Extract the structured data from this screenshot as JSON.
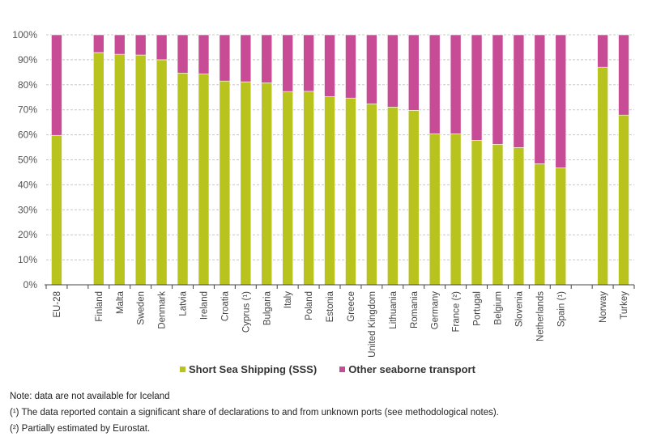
{
  "chart_data": {
    "type": "bar",
    "stacked": true,
    "percent": true,
    "title": "",
    "xlabel": "",
    "ylabel": "",
    "ylim": [
      0,
      100
    ],
    "yticks": [
      "0%",
      "10%",
      "20%",
      "30%",
      "40%",
      "50%",
      "60%",
      "70%",
      "80%",
      "90%",
      "100%"
    ],
    "grid": true,
    "legend_position": "bottom",
    "categories": [
      "EU-28",
      "",
      "Finland",
      "Malta",
      "Sweden",
      "Denmark",
      "Latvia",
      "Ireland",
      "Croatia",
      "Cyprus (¹)",
      "Bulgaria",
      "Italy",
      "Poland",
      "Estonia",
      "Greece",
      "United Kingdom",
      "Lithuania",
      "Romania",
      "Germany",
      "France (²)",
      "Portugal",
      "Belgium",
      "Slovenia",
      "Netherlands",
      "Spain (¹)",
      "",
      "Norway",
      "Turkey"
    ],
    "series": [
      {
        "name": "Short Sea Shipping (SSS)",
        "color": "#b9c31d",
        "values": [
          59.8,
          null,
          92.9,
          92.2,
          91.9,
          90.0,
          84.7,
          84.4,
          81.5,
          81.2,
          80.8,
          77.3,
          77.4,
          75.3,
          74.7,
          72.4,
          71.1,
          69.8,
          60.4,
          60.4,
          57.8,
          56.2,
          54.9,
          48.4,
          46.8,
          null,
          87.0,
          67.9
        ]
      },
      {
        "name": "Other seaborne transport",
        "color": "#c84b96",
        "values": [
          40.2,
          null,
          7.1,
          7.8,
          8.1,
          10.0,
          15.3,
          15.6,
          18.5,
          18.8,
          19.2,
          22.7,
          22.6,
          24.7,
          25.3,
          27.6,
          28.9,
          30.2,
          39.6,
          39.6,
          42.2,
          43.8,
          45.1,
          51.6,
          53.2,
          null,
          13.0,
          32.1
        ]
      }
    ]
  },
  "legend": {
    "items": [
      {
        "label": "Short Sea Shipping (SSS)",
        "color": "#b9c31d"
      },
      {
        "label": "Other seaborne transport",
        "color": "#c84b96"
      }
    ]
  },
  "notes": [
    "Note: data are not available for Iceland",
    "(¹) The data reported contain a significant share of declarations to and from unknown ports (see methodological notes).",
    "(²) Partially estimated by Eurostat."
  ]
}
